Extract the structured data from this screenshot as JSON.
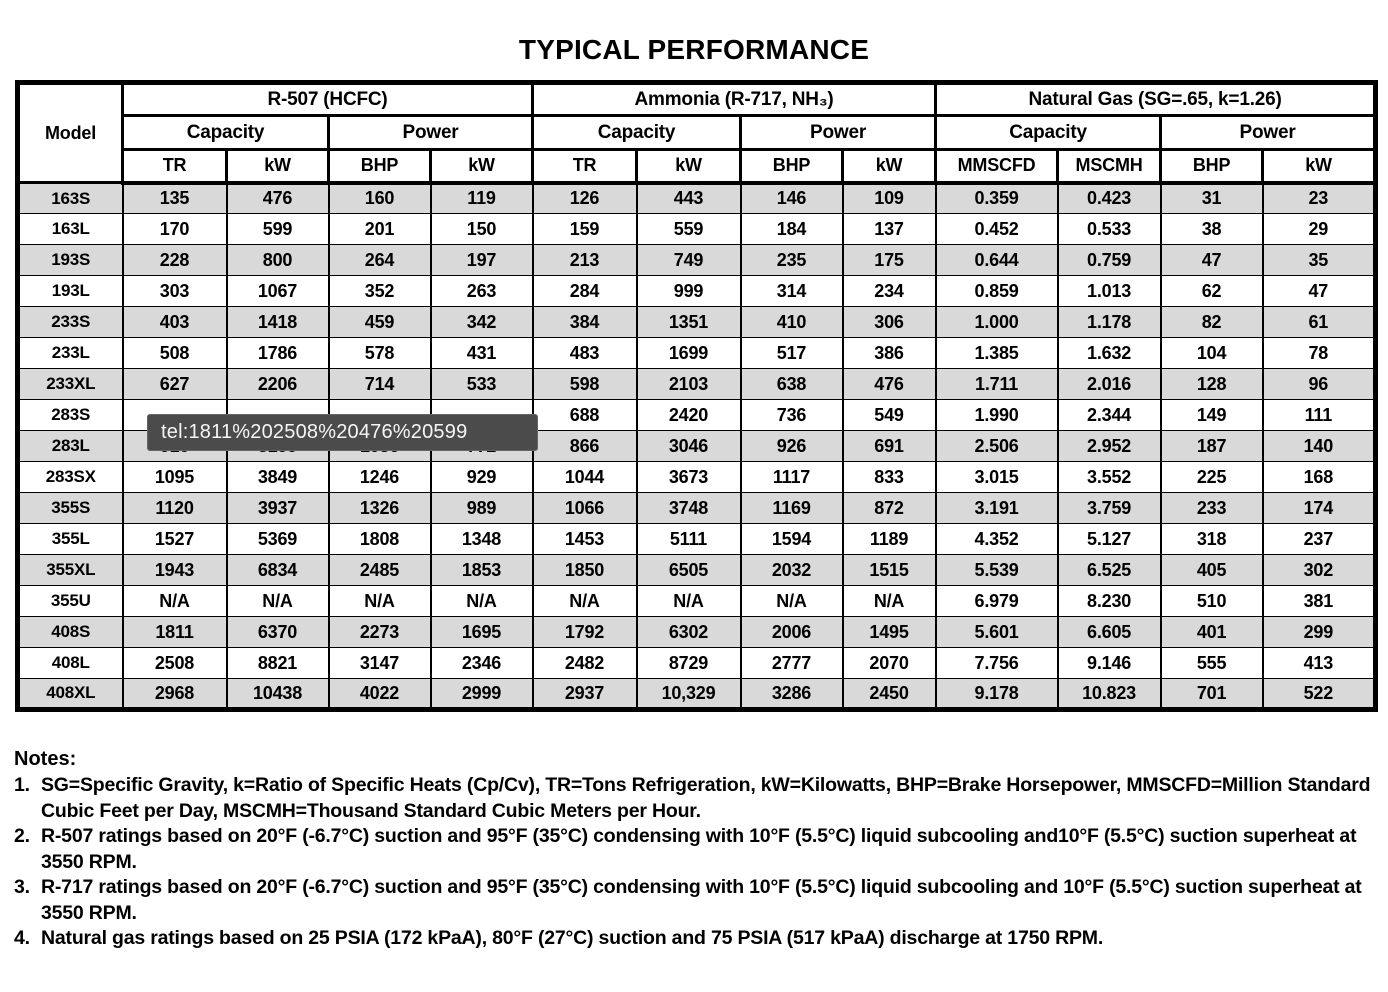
{
  "title": "TYPICAL PERFORMANCE",
  "table": {
    "model_header": "Model",
    "groups": [
      "R-507 (HCFC)",
      "Ammonia (R-717, NH₃)",
      "Natural Gas (SG=.65, k=1.26)"
    ],
    "subheaders": [
      "Capacity",
      "Power",
      "Capacity",
      "Power",
      "Capacity",
      "Power"
    ],
    "columns": [
      "TR",
      "kW",
      "BHP",
      "kW",
      "TR",
      "kW",
      "BHP",
      "kW",
      "MMSCFD",
      "MSCMH",
      "BHP",
      "kW"
    ],
    "rows": [
      {
        "model": "163S",
        "values": [
          "135",
          "476",
          "160",
          "119",
          "126",
          "443",
          "146",
          "109",
          "0.359",
          "0.423",
          "31",
          "23"
        ]
      },
      {
        "model": "163L",
        "values": [
          "170",
          "599",
          "201",
          "150",
          "159",
          "559",
          "184",
          "137",
          "0.452",
          "0.533",
          "38",
          "29"
        ]
      },
      {
        "model": "193S",
        "values": [
          "228",
          "800",
          "264",
          "197",
          "213",
          "749",
          "235",
          "175",
          "0.644",
          "0.759",
          "47",
          "35"
        ]
      },
      {
        "model": "193L",
        "values": [
          "303",
          "1067",
          "352",
          "263",
          "284",
          "999",
          "314",
          "234",
          "0.859",
          "1.013",
          "62",
          "47"
        ]
      },
      {
        "model": "233S",
        "values": [
          "403",
          "1418",
          "459",
          "342",
          "384",
          "1351",
          "410",
          "306",
          "1.000",
          "1.178",
          "82",
          "61"
        ]
      },
      {
        "model": "233L",
        "values": [
          "508",
          "1786",
          "578",
          "431",
          "483",
          "1699",
          "517",
          "386",
          "1.385",
          "1.632",
          "104",
          "78"
        ]
      },
      {
        "model": "233XL",
        "values": [
          "627",
          "2206",
          "714",
          "533",
          "598",
          "2103",
          "638",
          "476",
          "1.711",
          "2.016",
          "128",
          "96"
        ]
      },
      {
        "model": "283S",
        "values": [
          "",
          "",
          "",
          "",
          "688",
          "2420",
          "736",
          "549",
          "1.990",
          "2.344",
          "149",
          "111"
        ]
      },
      {
        "model": "283L",
        "values": [
          "910",
          "3199",
          "1036",
          "772",
          "866",
          "3046",
          "926",
          "691",
          "2.506",
          "2.952",
          "187",
          "140"
        ]
      },
      {
        "model": "283SX",
        "values": [
          "1095",
          "3849",
          "1246",
          "929",
          "1044",
          "3673",
          "1117",
          "833",
          "3.015",
          "3.552",
          "225",
          "168"
        ]
      },
      {
        "model": "355S",
        "values": [
          "1120",
          "3937",
          "1326",
          "989",
          "1066",
          "3748",
          "1169",
          "872",
          "3.191",
          "3.759",
          "233",
          "174"
        ]
      },
      {
        "model": "355L",
        "values": [
          "1527",
          "5369",
          "1808",
          "1348",
          "1453",
          "5111",
          "1594",
          "1189",
          "4.352",
          "5.127",
          "318",
          "237"
        ]
      },
      {
        "model": "355XL",
        "values": [
          "1943",
          "6834",
          "2485",
          "1853",
          "1850",
          "6505",
          "2032",
          "1515",
          "5.539",
          "6.525",
          "405",
          "302"
        ]
      },
      {
        "model": "355U",
        "values": [
          "N/A",
          "N/A",
          "N/A",
          "N/A",
          "N/A",
          "N/A",
          "N/A",
          "N/A",
          "6.979",
          "8.230",
          "510",
          "381"
        ]
      },
      {
        "model": "408S",
        "values": [
          "1811",
          "6370",
          "2273",
          "1695",
          "1792",
          "6302",
          "2006",
          "1495",
          "5.601",
          "6.605",
          "401",
          "299"
        ]
      },
      {
        "model": "408L",
        "values": [
          "2508",
          "8821",
          "3147",
          "2346",
          "2482",
          "8729",
          "2777",
          "2070",
          "7.756",
          "9.146",
          "555",
          "413"
        ]
      },
      {
        "model": "408XL",
        "values": [
          "2968",
          "10438",
          "4022",
          "2999",
          "2937",
          "10,329",
          "3286",
          "2450",
          "9.178",
          "10.823",
          "701",
          "522"
        ]
      }
    ]
  },
  "tooltip": {
    "text": "tel:1811%202508%20476%20599"
  },
  "notes": {
    "heading": "Notes:",
    "items": [
      {
        "num": "1.",
        "text": "SG=Specific Gravity, k=Ratio of Specific Heats (Cp/Cv), TR=Tons Refrigeration, kW=Kilowatts, BHP=Brake Horsepower, MMSCFD=Million Standard Cubic Feet per Day, MSCMH=Thousand Standard Cubic Meters per Hour."
      },
      {
        "num": "2.",
        "text": "R-507 ratings based on 20°F (-6.7°C) suction and 95°F (35°C) condensing with 10°F (5.5°C) liquid subcooling and10°F (5.5°C) suction superheat at 3550 RPM."
      },
      {
        "num": "3.",
        "text": "R-717 ratings based on 20°F (-6.7°C) suction and 95°F (35°C) condensing with 10°F (5.5°C) liquid subcooling and 10°F (5.5°C) suction superheat at 3550 RPM."
      },
      {
        "num": "4.",
        "text": "Natural gas ratings based on 25 PSIA (172 kPaA), 80°F (27°C) suction and 75 PSIA (517 kPaA) discharge at 1750 RPM."
      }
    ]
  },
  "colors": {
    "stripe": "#d9d9d9",
    "tooltip_bg": "#4b4b4b",
    "tooltip_text": "#f5f5f5",
    "border": "#000000"
  }
}
